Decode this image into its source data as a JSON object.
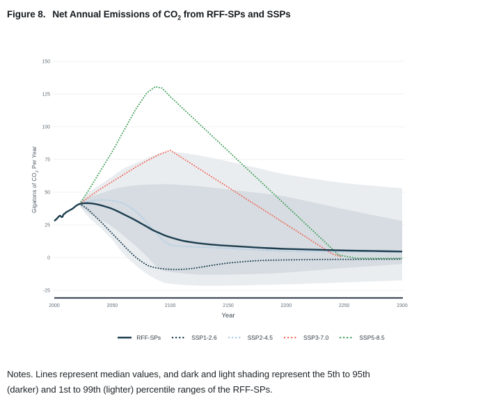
{
  "figure": {
    "title": {
      "prefix": "Figure 8.",
      "main": "Net Annual Emissions of CO",
      "sub": "2",
      "suffix": " from RFF-SPs and SSPs"
    }
  },
  "axes": {
    "ylabel": {
      "a": "Gigatons of CO",
      "sub": "2",
      "b": " Per Year"
    },
    "xlabel": "Year"
  },
  "notes": {
    "line1": "Notes. Lines represent median values, and dark and light shading represent the 5th to 95th",
    "line2": "(darker) and 1st to 99th (lighter) percentile ranges of the RFF-SPs."
  },
  "chart_data": {
    "type": "line",
    "title": "Figure 8. Net Annual Emissions of CO2 from RFF-SPs and SSPs",
    "xlabel": "Year",
    "ylabel": "Gigatons of CO2 Per Year",
    "xlim": [
      2000,
      2300
    ],
    "ylim": [
      -25,
      150
    ],
    "x_ticks": [
      2000,
      2050,
      2100,
      2150,
      2200,
      2250,
      2300
    ],
    "y_ticks": [
      150,
      125,
      100,
      75,
      50,
      25,
      0,
      -25
    ],
    "grid": "horizontal-light",
    "legend_position": "bottom-center",
    "colors": {
      "navy": "#1c3d4f",
      "light_blue": "#a9c9e6",
      "red": "#f16a5e",
      "green": "#44a05b",
      "band_dark": "#d6dce1",
      "band_light": "#eaedf0",
      "grid_line": "#eff1f3",
      "axis_line": "#434e59",
      "tick_text": "#5f6b76"
    },
    "bands": {
      "label_dark": "RFF-SPs 5th to 95th percentile",
      "label_light": "RFF-SPs 1st to 99th percentile",
      "years": [
        2022,
        2030,
        2040,
        2050,
        2060,
        2075,
        2090,
        2100,
        2125,
        2150,
        2175,
        2200,
        2250,
        2300
      ],
      "p99": [
        43,
        50,
        56,
        62,
        68,
        74,
        79.5,
        81,
        78,
        73.5,
        68.5,
        63.5,
        57,
        53
      ],
      "p95": [
        42.5,
        46,
        49,
        52,
        54,
        55.5,
        56,
        56,
        54.5,
        52,
        49.5,
        46.5,
        37,
        28
      ],
      "p5": [
        39.5,
        34,
        29,
        23.5,
        16.5,
        5,
        -8,
        -11,
        -13,
        -13,
        -12.5,
        -11.5,
        -8,
        -5
      ],
      "p1": [
        39,
        30.5,
        22.5,
        13.5,
        2.5,
        -9.5,
        -17.5,
        -20,
        -21.5,
        -21.5,
        -21,
        -20.5,
        -19,
        -17.5
      ]
    },
    "series": [
      {
        "name": "RFF-SPs",
        "style": "solid",
        "color": "#1c3d4f",
        "width": 2.4,
        "smooth": true,
        "x": [
          2000,
          2002,
          2004,
          2005,
          2006,
          2007,
          2008,
          2009,
          2010,
          2012,
          2014,
          2016,
          2018,
          2020,
          2022,
          2026,
          2030,
          2035,
          2040,
          2045,
          2050,
          2055,
          2060,
          2065,
          2070,
          2075,
          2080,
          2085,
          2090,
          2095,
          2100,
          2110,
          2120,
          2130,
          2140,
          2150,
          2165,
          2180,
          2200,
          2225,
          2250,
          2275,
          2300
        ],
        "y": [
          28,
          29.5,
          31.5,
          32,
          31.2,
          31,
          33,
          33.5,
          34.5,
          35.5,
          36.5,
          37.5,
          39,
          40.2,
          41,
          41.5,
          41.5,
          41,
          40,
          38.7,
          37.2,
          35.2,
          33,
          30.8,
          28.5,
          26,
          23.5,
          21,
          19,
          17,
          15.5,
          13,
          11.5,
          10.4,
          9.6,
          9,
          8.2,
          7.4,
          6.6,
          6,
          5.4,
          5,
          4.6
        ]
      },
      {
        "name": "SSP1-2.6",
        "style": "dotted",
        "color": "#1c3d4f",
        "width": 2,
        "smooth": true,
        "x": [
          2022,
          2028,
          2034,
          2040,
          2046,
          2052,
          2058,
          2064,
          2070,
          2076,
          2082,
          2090,
          2100,
          2110,
          2120,
          2130,
          2140,
          2150,
          2165,
          2180,
          2200,
          2225,
          2250,
          2275,
          2300
        ],
        "y": [
          41,
          37.5,
          32.5,
          27.5,
          22,
          16.5,
          11,
          5.5,
          0.5,
          -3.5,
          -6.5,
          -8.2,
          -9,
          -9,
          -8.2,
          -6.8,
          -5.4,
          -4.2,
          -3,
          -2.2,
          -1.8,
          -1.5,
          -1.4,
          -1.3,
          -1.2
        ]
      },
      {
        "name": "SSP2-4.5",
        "style": "dotted",
        "color": "#a9c9e6",
        "width": 2,
        "smooth": true,
        "x": [
          2022,
          2028,
          2034,
          2040,
          2046,
          2052,
          2058,
          2064,
          2070,
          2076,
          2082,
          2088,
          2094,
          2100,
          2108,
          2120,
          2135,
          2150,
          2170,
          2190,
          2210,
          2240,
          2270,
          2300
        ],
        "y": [
          41,
          42.5,
          43.6,
          44,
          43.9,
          43.2,
          41.8,
          39.5,
          35.5,
          30.5,
          24.5,
          18.5,
          13,
          9.8,
          8.8,
          8.2,
          7.6,
          7,
          6,
          5.2,
          4.7,
          4.4,
          4.3,
          4.2
        ]
      },
      {
        "name": "SSP3-7.0",
        "style": "dotted",
        "color": "#f16a5e",
        "width": 2,
        "smooth": false,
        "x": [
          2022,
          2030,
          2040,
          2050,
          2060,
          2070,
          2080,
          2090,
          2100,
          2110,
          2120,
          2130,
          2140,
          2150,
          2160,
          2170,
          2180,
          2190,
          2200,
          2210,
          2220,
          2230,
          2240,
          2248
        ],
        "y": [
          41,
          46.5,
          52.5,
          58,
          63.5,
          69,
          74,
          78.5,
          82,
          76.3,
          70.7,
          65,
          59.3,
          53.7,
          48,
          42.3,
          36.7,
          31,
          25.3,
          19.7,
          14,
          8.3,
          2.7,
          0.5
        ]
      },
      {
        "name": "SSP5-8.5",
        "style": "dotted",
        "color": "#44a05b",
        "width": 2,
        "smooth": false,
        "x": [
          2022,
          2030,
          2040,
          2050,
          2060,
          2070,
          2080,
          2087,
          2093,
          2100,
          2115,
          2130,
          2145,
          2160,
          2175,
          2190,
          2205,
          2220,
          2235,
          2245,
          2260,
          2280,
          2300
        ],
        "y": [
          41,
          52,
          66.5,
          81,
          97,
          113,
          126,
          130.5,
          129.5,
          123,
          110.5,
          98,
          85.5,
          73,
          60.5,
          48,
          35.5,
          23,
          10.5,
          2,
          -0.5,
          -0.6,
          -0.6
        ]
      }
    ]
  }
}
